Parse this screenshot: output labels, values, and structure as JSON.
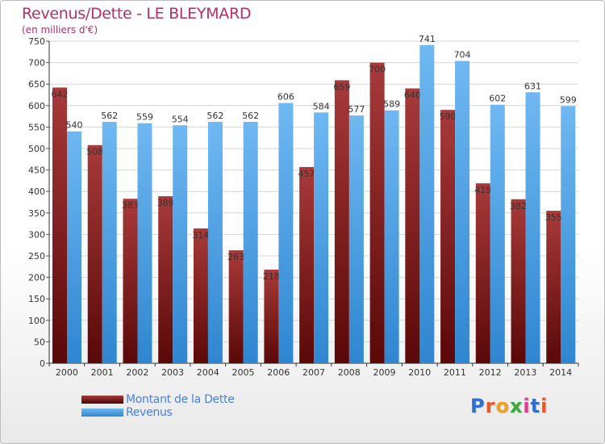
{
  "title": "Revenus/Dette - LE BLEYMARD",
  "subtitle": "(en milliers d'€)",
  "legend": {
    "dette_label": "Montant de la Dette",
    "revenus_label": "Revenus"
  },
  "logo": {
    "text": "Proxiti",
    "letter_colors": [
      "#2e6fd0",
      "#e8582a",
      "#f0a020",
      "#3aa83a",
      "#e23a8c",
      "#2e6fd0",
      "#e8582a"
    ]
  },
  "colors": {
    "dette": "#7a1e1e",
    "dette_light": "#a83a3a",
    "revenus": "#4a9fe8",
    "revenus_light": "#6fb8f2",
    "title": "#b0306a",
    "legend_text": "#4a7fe0"
  },
  "chart_data": {
    "type": "bar",
    "categories": [
      "2000",
      "2001",
      "2002",
      "2003",
      "2004",
      "2005",
      "2006",
      "2007",
      "2008",
      "2009",
      "2010",
      "2011",
      "2012",
      "2013",
      "2014"
    ],
    "series": [
      {
        "name": "Montant de la Dette",
        "values": [
          642,
          508,
          383,
          389,
          314,
          263,
          218,
          457,
          659,
          700,
          640,
          590,
          419,
          382,
          355
        ]
      },
      {
        "name": "Revenus",
        "values": [
          540,
          562,
          559,
          554,
          562,
          562,
          606,
          584,
          577,
          589,
          741,
          704,
          602,
          631,
          599
        ]
      }
    ],
    "ylim": [
      0,
      750
    ],
    "yticks": [
      0,
      50,
      100,
      150,
      200,
      250,
      300,
      350,
      400,
      450,
      500,
      550,
      600,
      650,
      700,
      750
    ],
    "grid": true,
    "legend_position": "bottom-left"
  }
}
